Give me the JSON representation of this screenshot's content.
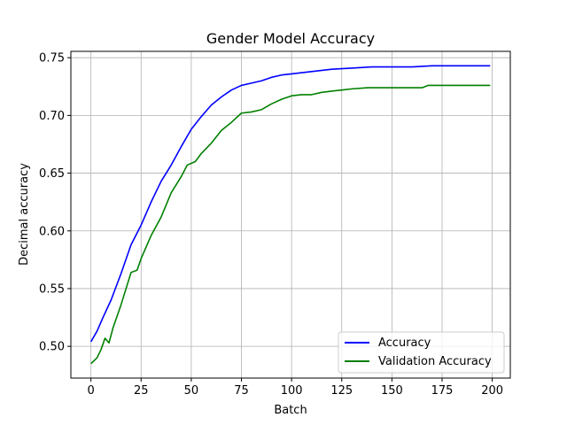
{
  "chart_data": {
    "type": "line",
    "title": "Gender Model Accuracy",
    "xlabel": "Batch",
    "ylabel": "Decimal accuracy",
    "xlim": [
      -10,
      209
    ],
    "ylim": [
      0.4725,
      0.7555
    ],
    "xticks": [
      0,
      25,
      50,
      75,
      100,
      125,
      150,
      175,
      200
    ],
    "xtick_labels": [
      "0",
      "25",
      "50",
      "75",
      "100",
      "125",
      "150",
      "175",
      "200"
    ],
    "yticks": [
      0.5,
      0.55,
      0.6,
      0.65,
      0.7,
      0.75
    ],
    "ytick_labels": [
      "0.50",
      "0.55",
      "0.60",
      "0.65",
      "0.70",
      "0.75"
    ],
    "grid": true,
    "legend_position": "lower right",
    "series": [
      {
        "name": "Accuracy",
        "color": "#0000ff",
        "points": [
          [
            0,
            0.504
          ],
          [
            3,
            0.513
          ],
          [
            6,
            0.525
          ],
          [
            10,
            0.54
          ],
          [
            15,
            0.563
          ],
          [
            20,
            0.588
          ],
          [
            25,
            0.605
          ],
          [
            30,
            0.625
          ],
          [
            35,
            0.643
          ],
          [
            40,
            0.657
          ],
          [
            45,
            0.673
          ],
          [
            50,
            0.688
          ],
          [
            55,
            0.699
          ],
          [
            60,
            0.709
          ],
          [
            65,
            0.716
          ],
          [
            70,
            0.722
          ],
          [
            75,
            0.726
          ],
          [
            80,
            0.728
          ],
          [
            85,
            0.73
          ],
          [
            90,
            0.733
          ],
          [
            95,
            0.735
          ],
          [
            100,
            0.736
          ],
          [
            110,
            0.738
          ],
          [
            120,
            0.74
          ],
          [
            130,
            0.741
          ],
          [
            140,
            0.742
          ],
          [
            150,
            0.742
          ],
          [
            160,
            0.742
          ],
          [
            170,
            0.743
          ],
          [
            180,
            0.743
          ],
          [
            190,
            0.743
          ],
          [
            199,
            0.743
          ]
        ]
      },
      {
        "name": "Validation Accuracy",
        "color": "#008000",
        "points": [
          [
            0,
            0.485
          ],
          [
            3,
            0.49
          ],
          [
            5,
            0.497
          ],
          [
            7,
            0.507
          ],
          [
            9,
            0.503
          ],
          [
            11,
            0.516
          ],
          [
            15,
            0.536
          ],
          [
            20,
            0.564
          ],
          [
            23,
            0.566
          ],
          [
            25,
            0.576
          ],
          [
            30,
            0.596
          ],
          [
            35,
            0.612
          ],
          [
            40,
            0.633
          ],
          [
            45,
            0.647
          ],
          [
            48,
            0.657
          ],
          [
            52,
            0.66
          ],
          [
            55,
            0.667
          ],
          [
            60,
            0.676
          ],
          [
            65,
            0.687
          ],
          [
            70,
            0.694
          ],
          [
            75,
            0.702
          ],
          [
            80,
            0.703
          ],
          [
            85,
            0.705
          ],
          [
            90,
            0.71
          ],
          [
            95,
            0.714
          ],
          [
            100,
            0.717
          ],
          [
            105,
            0.718
          ],
          [
            110,
            0.718
          ],
          [
            115,
            0.72
          ],
          [
            120,
            0.721
          ],
          [
            125,
            0.722
          ],
          [
            130,
            0.723
          ],
          [
            138,
            0.724
          ],
          [
            145,
            0.724
          ],
          [
            155,
            0.724
          ],
          [
            165,
            0.724
          ],
          [
            168,
            0.726
          ],
          [
            180,
            0.726
          ],
          [
            199,
            0.726
          ]
        ]
      }
    ]
  }
}
